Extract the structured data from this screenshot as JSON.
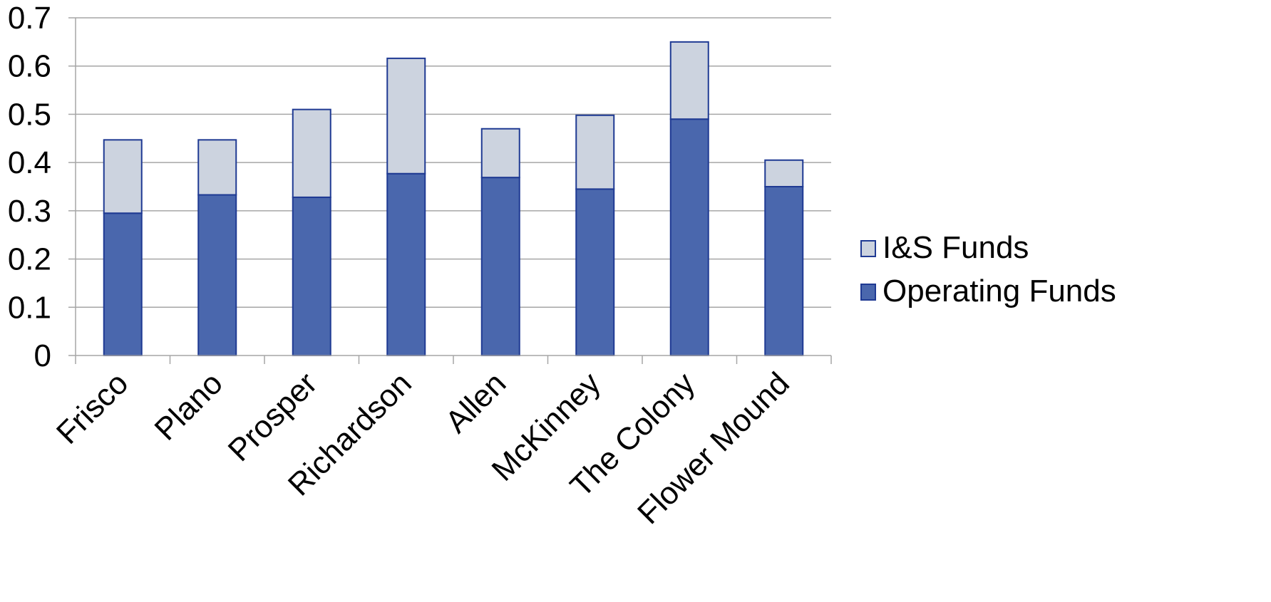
{
  "chart_data": {
    "type": "bar",
    "stacked": true,
    "categories": [
      "Frisco",
      "Plano",
      "Prosper",
      "Richardson",
      "Allen",
      "McKinney",
      "The Colony",
      "Flower Mound"
    ],
    "series": [
      {
        "name": "Operating Funds",
        "values": [
          0.295,
          0.333,
          0.328,
          0.377,
          0.369,
          0.345,
          0.49,
          0.35
        ],
        "color": "#4A67AD"
      },
      {
        "name": "I&S Funds",
        "values": [
          0.152,
          0.114,
          0.182,
          0.239,
          0.101,
          0.153,
          0.16,
          0.055
        ],
        "color": "#CCD3DF"
      }
    ],
    "bar_outline_color": "#1F3A93",
    "ylim": [
      0,
      0.7
    ],
    "yticks": [
      "0",
      "0.1",
      "0.2",
      "0.3",
      "0.4",
      "0.5",
      "0.6",
      "0.7"
    ],
    "grid": true,
    "gridline_color": "#A6A6A6",
    "legend": {
      "placement": "right",
      "entries": [
        "I&S Funds",
        "Operating Funds"
      ]
    },
    "title": "",
    "xlabel": "",
    "ylabel": ""
  }
}
